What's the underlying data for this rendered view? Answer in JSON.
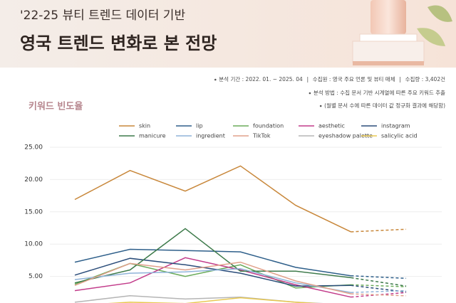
{
  "header": {
    "title_line1": "'22-25 뷰티 트렌드 데이터 기반",
    "title_line2": "영국 트렌드 변화로 본 전망"
  },
  "notes": [
    [
      "분석 기간 : 2022. 01. ~ 2025. 04",
      "수집원 : 영국 주요 언론 및 뷰티 매체",
      "수집량 : 3,402건"
    ],
    [
      "분석 방법 : 수집 문서 기반 시계열에 따른 주요 키워드 추출"
    ],
    [
      "(월별 문서 수에 따른 데이터 값 정규화 결과에 해당함)"
    ]
  ],
  "chart_data": {
    "type": "line",
    "title": "키워드 빈도율",
    "categories": [
      null,
      null,
      null,
      null,
      null,
      null,
      null
    ],
    "forecast_start_index": 5,
    "ylim": [
      0,
      25
    ],
    "yticks": [
      {
        "value": 5,
        "label": "5.00"
      },
      {
        "value": 10,
        "label": "10.00"
      },
      {
        "value": 15,
        "label": "15.00"
      },
      {
        "value": 20,
        "label": "20.00"
      },
      {
        "value": 25,
        "label": "25.00"
      }
    ],
    "grid": true,
    "series": [
      {
        "name": "skin",
        "color": "#c8873a",
        "values": [
          16.9,
          21.4,
          18.2,
          22.1,
          16.0,
          11.9,
          12.3
        ]
      },
      {
        "name": "lip",
        "color": "#2e5f8a",
        "values": [
          7.2,
          9.2,
          9.0,
          8.8,
          6.4,
          5.1,
          4.7
        ]
      },
      {
        "name": "foundation",
        "color": "#6aab5a",
        "values": [
          3.8,
          7.0,
          5.0,
          6.8,
          3.2,
          3.7,
          3.4
        ]
      },
      {
        "name": "aesthetic",
        "color": "#c23b8a",
        "values": [
          2.8,
          4.0,
          7.9,
          6.0,
          3.7,
          1.8,
          2.5
        ]
      },
      {
        "name": "instagram",
        "color": "#2b4d7a",
        "values": [
          5.2,
          7.8,
          6.8,
          5.5,
          3.5,
          3.6,
          2.6
        ]
      },
      {
        "name": "manicure",
        "color": "#3d7a4a",
        "values": [
          4.0,
          6.0,
          12.4,
          5.8,
          5.8,
          4.8,
          3.5
        ]
      },
      {
        "name": "ingredient",
        "color": "#8fb3d9",
        "values": [
          4.5,
          5.5,
          5.7,
          6.2,
          4.0,
          2.5,
          2.8
        ]
      },
      {
        "name": "TikTok",
        "color": "#e0a08a",
        "values": [
          3.6,
          7.0,
          6.0,
          7.2,
          4.3,
          2.3,
          2.0
        ]
      },
      {
        "name": "eyeshadow palette",
        "color": "#b5b5b5",
        "values": [
          1.0,
          2.0,
          1.5,
          1.8,
          1.0,
          0.6,
          0.5
        ]
      },
      {
        "name": "salicylic acid",
        "color": "#e8c850",
        "values": [
          0.5,
          1.0,
          0.8,
          1.7,
          1.0,
          0.5,
          0.4
        ]
      }
    ]
  }
}
